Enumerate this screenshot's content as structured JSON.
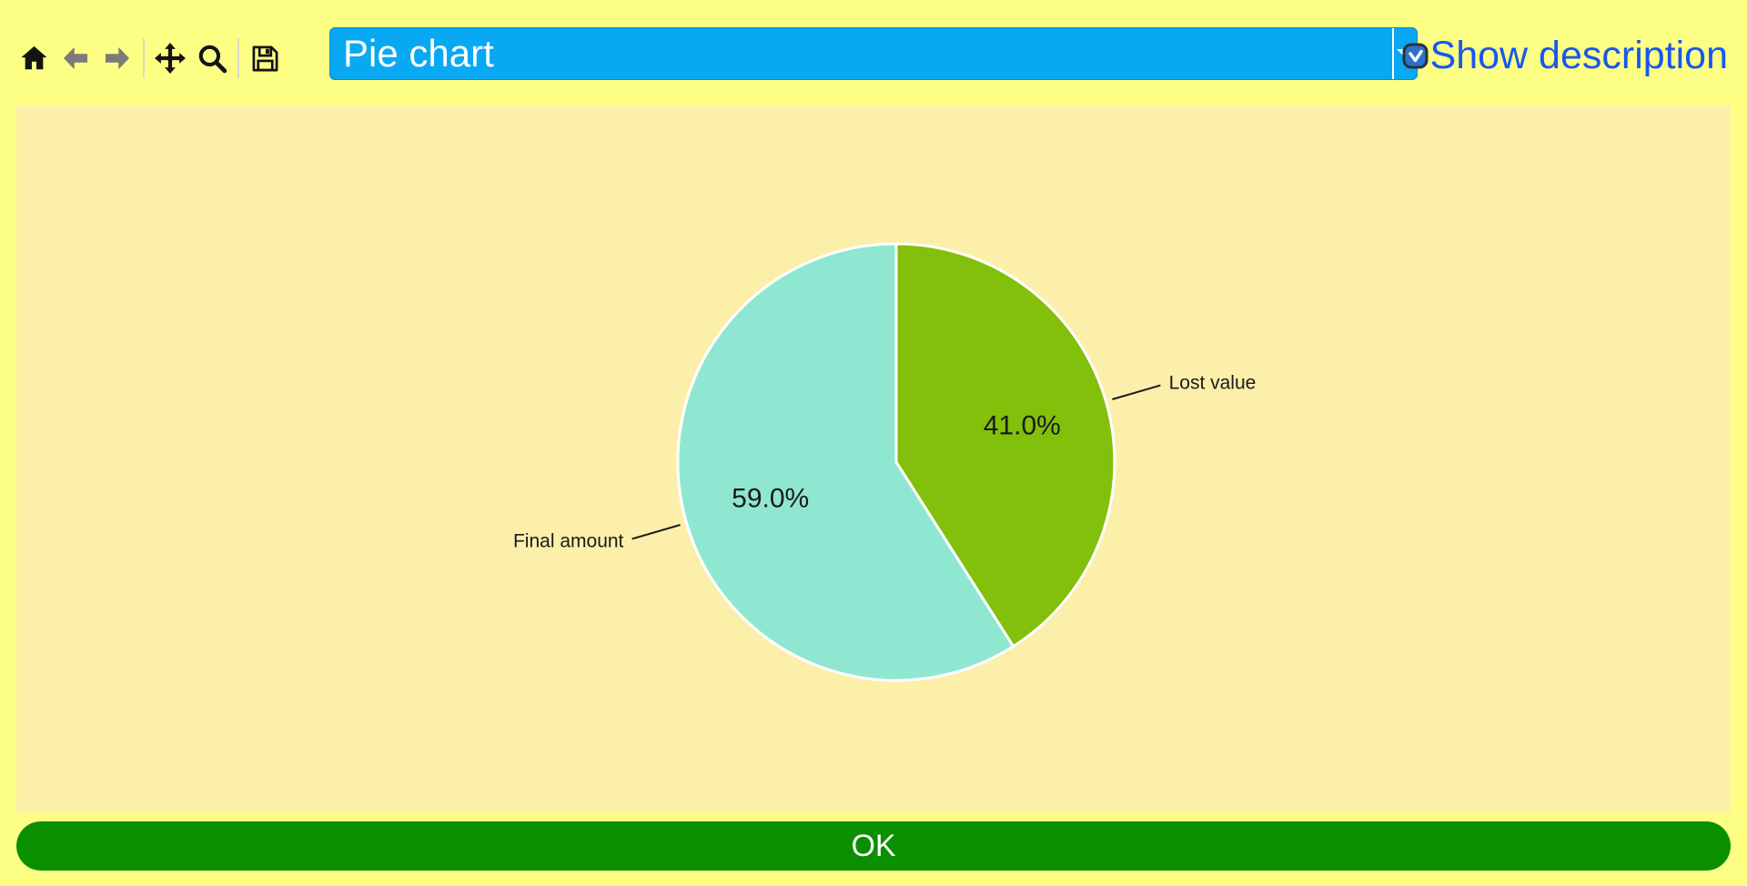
{
  "toolbar": {
    "icons": [
      {
        "name": "home"
      },
      {
        "name": "back"
      },
      {
        "name": "forward"
      },
      {
        "name": "pan"
      },
      {
        "name": "zoom"
      },
      {
        "name": "save"
      }
    ],
    "chart_selector": {
      "value": "Pie chart"
    },
    "show_description": {
      "label": "Show description",
      "checked": true
    }
  },
  "chart_data": {
    "type": "pie",
    "labels": [
      "Lost value",
      "Final amount"
    ],
    "values": [
      41.0,
      59.0
    ],
    "percent_labels": [
      "41.0%",
      "59.0%"
    ],
    "slice_colors": [
      "#82c00b",
      "#8fe7d2"
    ],
    "start_angle_deg": 90,
    "direction": "clockwise",
    "legend": "none",
    "background": "#fcefaa"
  },
  "footer": {
    "ok_label": "OK"
  },
  "colors": {
    "page_background": "#fdff84",
    "figure_background": "#fcefaa",
    "selector_blue": "#09a8f2",
    "link_blue": "#1757f1",
    "ok_green": "#0a8f00",
    "pie_green": "#82c00b",
    "pie_teal": "#8fe7d2"
  }
}
